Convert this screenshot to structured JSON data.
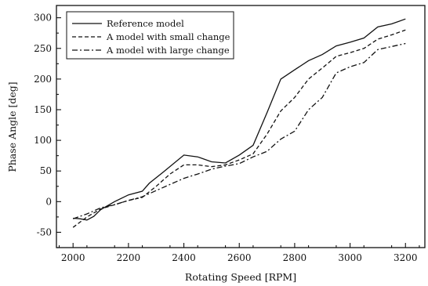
{
  "chart_data": {
    "type": "line",
    "xlabel": "Rotating Speed [RPM]",
    "ylabel": "Phase Angle [deg]",
    "xlim": [
      1940,
      3270
    ],
    "ylim": [
      -75,
      320
    ],
    "x_ticks": [
      2000,
      2200,
      2400,
      2600,
      2800,
      3000,
      3200
    ],
    "y_ticks": [
      -50,
      0,
      50,
      100,
      150,
      200,
      250,
      300
    ],
    "x_tick_labels": [
      "2000",
      "2200",
      "2400",
      "2600",
      "2800",
      "3000",
      "3200"
    ],
    "y_tick_labels": [
      "-50",
      "0",
      "50",
      "100",
      "150",
      "200",
      "250",
      "300"
    ],
    "grid": false,
    "legend_position": "top-left",
    "series": [
      {
        "name": "Reference model",
        "dash": "solid",
        "points": [
          [
            2000,
            -27
          ],
          [
            2025,
            -28
          ],
          [
            2050,
            -30
          ],
          [
            2075,
            -24
          ],
          [
            2100,
            -13
          ],
          [
            2150,
            0
          ],
          [
            2200,
            11
          ],
          [
            2250,
            17
          ],
          [
            2275,
            30
          ],
          [
            2325,
            48
          ],
          [
            2400,
            76
          ],
          [
            2450,
            73
          ],
          [
            2500,
            65
          ],
          [
            2550,
            63
          ],
          [
            2600,
            76
          ],
          [
            2650,
            92
          ],
          [
            2700,
            145
          ],
          [
            2750,
            200
          ],
          [
            2800,
            215
          ],
          [
            2850,
            230
          ],
          [
            2900,
            240
          ],
          [
            2950,
            254
          ],
          [
            3000,
            260
          ],
          [
            3050,
            267
          ],
          [
            3100,
            285
          ],
          [
            3150,
            290
          ],
          [
            3200,
            298
          ]
        ]
      },
      {
        "name": "A model with small change",
        "dash": "dashed",
        "points": [
          [
            2000,
            -42
          ],
          [
            2050,
            -25
          ],
          [
            2100,
            -12
          ],
          [
            2150,
            -5
          ],
          [
            2200,
            2
          ],
          [
            2250,
            7
          ],
          [
            2300,
            25
          ],
          [
            2350,
            45
          ],
          [
            2400,
            60
          ],
          [
            2450,
            60
          ],
          [
            2500,
            57
          ],
          [
            2550,
            60
          ],
          [
            2600,
            68
          ],
          [
            2650,
            78
          ],
          [
            2700,
            110
          ],
          [
            2750,
            148
          ],
          [
            2800,
            170
          ],
          [
            2850,
            200
          ],
          [
            2900,
            218
          ],
          [
            2950,
            237
          ],
          [
            3000,
            243
          ],
          [
            3050,
            250
          ],
          [
            3100,
            265
          ],
          [
            3150,
            272
          ],
          [
            3200,
            280
          ]
        ]
      },
      {
        "name": "A model with large change",
        "dash": "dash-dot",
        "points": [
          [
            2000,
            -28
          ],
          [
            2050,
            -20
          ],
          [
            2100,
            -10
          ],
          [
            2150,
            -5
          ],
          [
            2200,
            2
          ],
          [
            2250,
            8
          ],
          [
            2300,
            18
          ],
          [
            2350,
            28
          ],
          [
            2400,
            38
          ],
          [
            2450,
            45
          ],
          [
            2500,
            53
          ],
          [
            2550,
            58
          ],
          [
            2600,
            62
          ],
          [
            2650,
            73
          ],
          [
            2700,
            82
          ],
          [
            2750,
            102
          ],
          [
            2800,
            115
          ],
          [
            2850,
            150
          ],
          [
            2900,
            170
          ],
          [
            2950,
            210
          ],
          [
            3000,
            220
          ],
          [
            3050,
            227
          ],
          [
            3100,
            248
          ],
          [
            3150,
            253
          ],
          [
            3200,
            258
          ]
        ]
      }
    ]
  }
}
